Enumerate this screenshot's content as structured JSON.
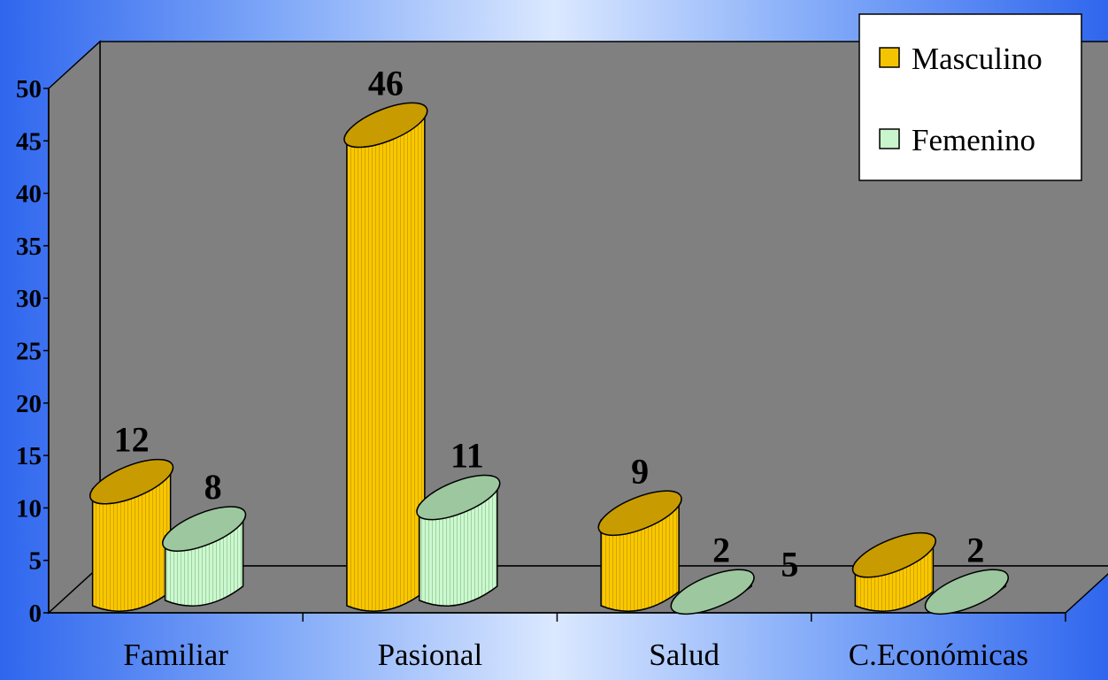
{
  "chart_data": {
    "type": "bar",
    "title": "",
    "xlabel": "",
    "ylabel": "",
    "categories": [
      "Familiar",
      "Pasional",
      "Salud",
      "C.Económicas"
    ],
    "series": [
      {
        "name": "Masculino",
        "values": [
          12,
          46,
          9,
          5
        ],
        "color": "#f5c400",
        "top_color": "#c89b00"
      },
      {
        "name": "Femenino",
        "values": [
          8,
          11,
          2,
          2
        ],
        "color": "#c8f5cc",
        "top_color": "#9cc79f"
      }
    ],
    "ylim": [
      0,
      50
    ],
    "yticks": [
      "0",
      "5",
      "10",
      "15",
      "20",
      "25",
      "30",
      "35",
      "40",
      "45",
      "50"
    ],
    "data_labels": [
      [
        "12",
        "46",
        "9",
        "5"
      ],
      [
        "8",
        "11",
        "2",
        "2"
      ]
    ],
    "grid": false,
    "legend_position": "top-right",
    "style": "3d-cylinder",
    "wall_color": "#808080"
  }
}
